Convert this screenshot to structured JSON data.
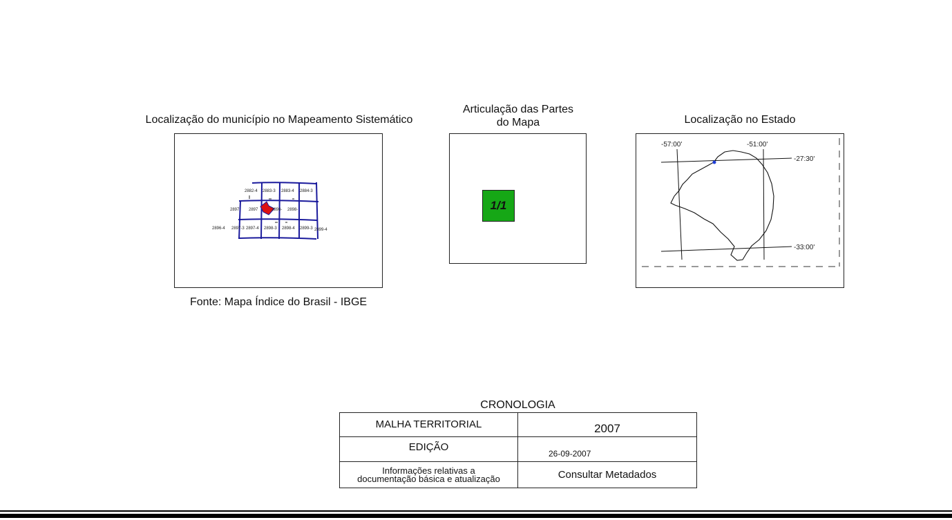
{
  "sections": {
    "mapeamento": {
      "title": "Localização do município no Mapeamento Sistemático",
      "source": "Fonte: Mapa Índice do Brasil - IBGE",
      "grid_labels": [
        "2882-4",
        "2883-3",
        "2883-4",
        "2884-3",
        "2897",
        "2897",
        "2898-",
        "2898-",
        "2896-4",
        "2897-3",
        "2897-4",
        "2898-3",
        "2898-4",
        "2899-3",
        "2899-4"
      ]
    },
    "articulacao": {
      "title_line1": "Articulação das Partes",
      "title_line2": "do Mapa",
      "part_label": "1/1",
      "part_color": "#16a716"
    },
    "estado": {
      "title": "Localização no Estado",
      "coords": {
        "lon_left": "-57:00'",
        "lon_right": "-51:00'",
        "lat_top": "-27:30'",
        "lat_bottom": "-33:00'"
      }
    }
  },
  "cronologia": {
    "title": "CRONOLOGIA",
    "rows": [
      {
        "label": "MALHA TERRITORIAL",
        "value": "2007"
      },
      {
        "label": "EDIÇÃO",
        "value": "26-09-2007"
      },
      {
        "label_line1": "Informações relativas a",
        "label_line2": "documentação básica e atualização",
        "value": "Consultar Metadados"
      }
    ]
  },
  "colors": {
    "grid": "#1a1a9c",
    "municipio": "#dd1111",
    "state_point": "#1f3fd8"
  }
}
